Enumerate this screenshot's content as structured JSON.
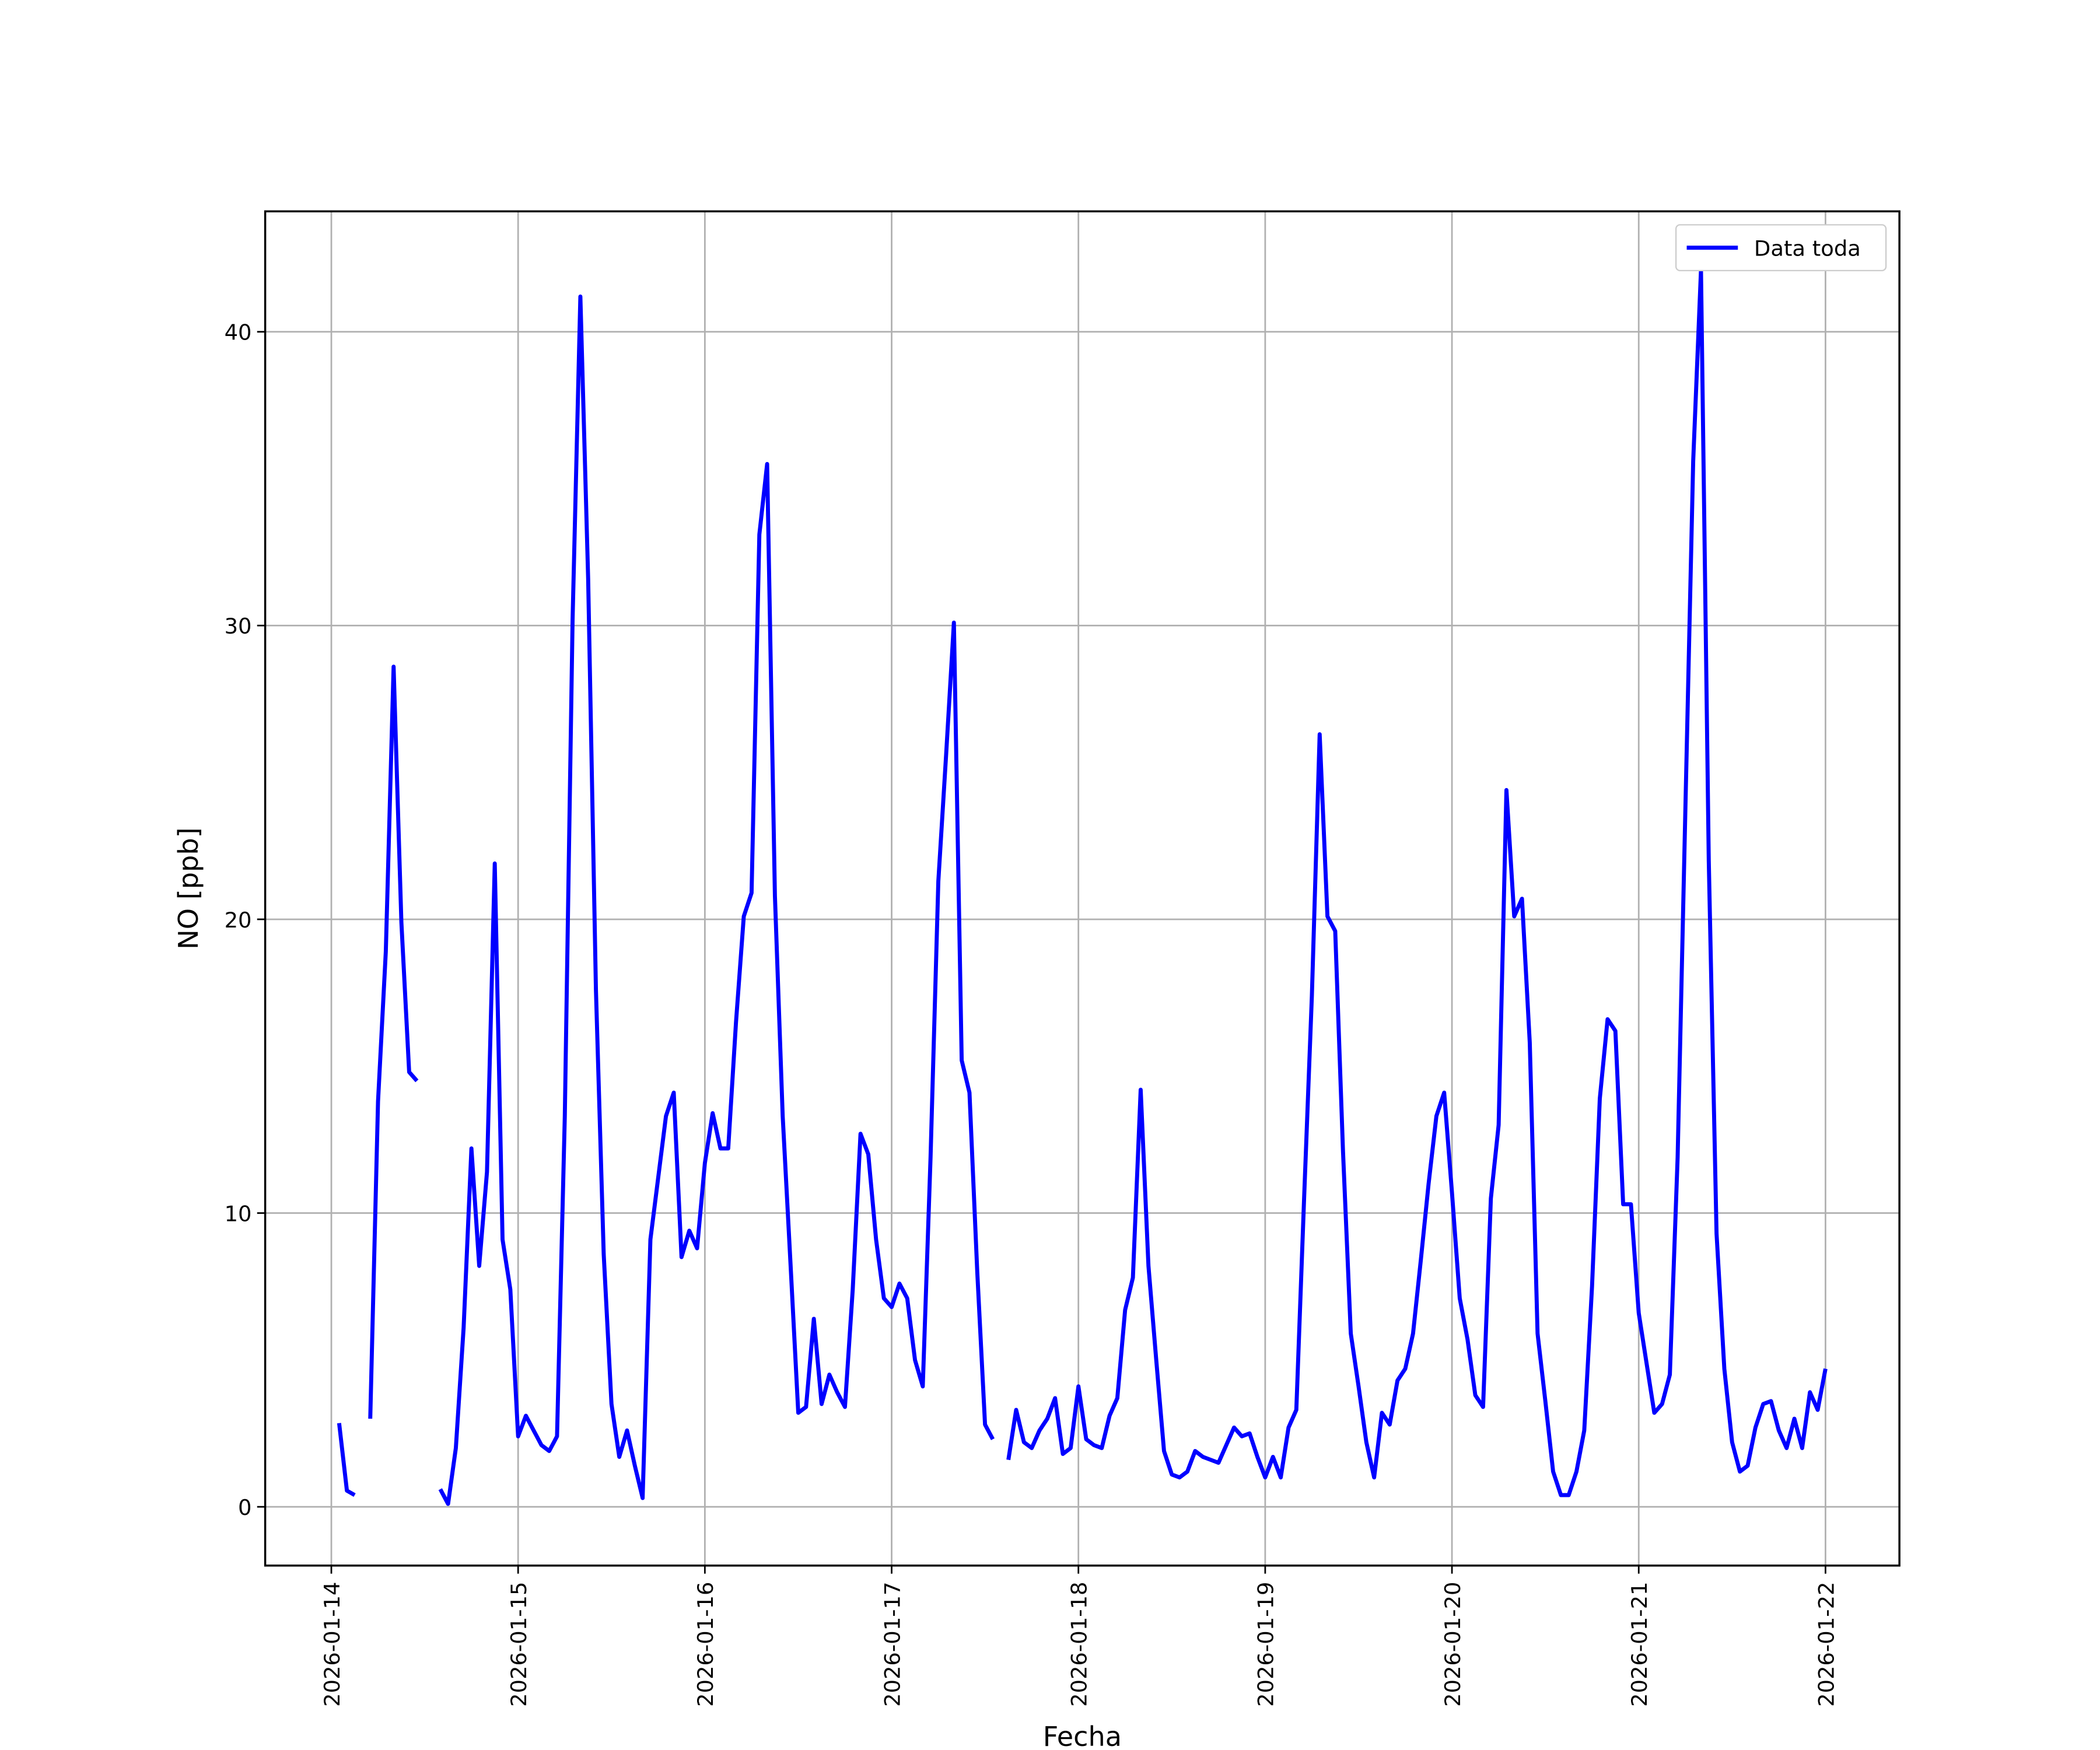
{
  "chart_data": {
    "type": "line",
    "xlabel": "Fecha",
    "ylabel": "NO [ppb]",
    "x": [
      "2026-01-14 01:00",
      "2026-01-14 02:00",
      "2026-01-14 03:00",
      "2026-01-14 04:00",
      "2026-01-14 05:00",
      "2026-01-14 06:00",
      "2026-01-14 07:00",
      "2026-01-14 08:00",
      "2026-01-14 09:00",
      "2026-01-14 10:00",
      "2026-01-14 11:00",
      "2026-01-14 12:00",
      "2026-01-14 13:00",
      "2026-01-14 14:00",
      "2026-01-14 15:00",
      "2026-01-14 16:00",
      "2026-01-14 17:00",
      "2026-01-14 18:00",
      "2026-01-14 19:00",
      "2026-01-14 20:00",
      "2026-01-14 21:00",
      "2026-01-14 22:00",
      "2026-01-14 23:00",
      "2026-01-15 00:00",
      "2026-01-15 01:00",
      "2026-01-15 02:00",
      "2026-01-15 03:00",
      "2026-01-15 04:00",
      "2026-01-15 05:00",
      "2026-01-15 06:00",
      "2026-01-15 07:00",
      "2026-01-15 08:00",
      "2026-01-15 09:00",
      "2026-01-15 10:00",
      "2026-01-15 11:00",
      "2026-01-15 12:00",
      "2026-01-15 13:00",
      "2026-01-15 14:00",
      "2026-01-15 15:00",
      "2026-01-15 16:00",
      "2026-01-15 17:00",
      "2026-01-15 18:00",
      "2026-01-15 19:00",
      "2026-01-15 20:00",
      "2026-01-15 21:00",
      "2026-01-15 22:00",
      "2026-01-15 23:00",
      "2026-01-16 00:00",
      "2026-01-16 01:00",
      "2026-01-16 02:00",
      "2026-01-16 03:00",
      "2026-01-16 04:00",
      "2026-01-16 05:00",
      "2026-01-16 06:00",
      "2026-01-16 07:00",
      "2026-01-16 08:00",
      "2026-01-16 09:00",
      "2026-01-16 10:00",
      "2026-01-16 11:00",
      "2026-01-16 12:00",
      "2026-01-16 13:00",
      "2026-01-16 14:00",
      "2026-01-16 15:00",
      "2026-01-16 16:00",
      "2026-01-16 17:00",
      "2026-01-16 18:00",
      "2026-01-16 19:00",
      "2026-01-16 20:00",
      "2026-01-16 21:00",
      "2026-01-16 22:00",
      "2026-01-16 23:00",
      "2026-01-17 00:00",
      "2026-01-17 01:00",
      "2026-01-17 02:00",
      "2026-01-17 03:00",
      "2026-01-17 04:00",
      "2026-01-17 05:00",
      "2026-01-17 06:00",
      "2026-01-17 07:00",
      "2026-01-17 08:00",
      "2026-01-17 09:00",
      "2026-01-17 10:00",
      "2026-01-17 11:00",
      "2026-01-17 12:00",
      "2026-01-17 13:00",
      "2026-01-17 14:00",
      "2026-01-17 15:00",
      "2026-01-17 16:00",
      "2026-01-17 17:00",
      "2026-01-17 18:00",
      "2026-01-17 19:00",
      "2026-01-17 20:00",
      "2026-01-17 21:00",
      "2026-01-17 22:00",
      "2026-01-17 23:00",
      "2026-01-18 00:00",
      "2026-01-18 01:00",
      "2026-01-18 02:00",
      "2026-01-18 03:00",
      "2026-01-18 04:00",
      "2026-01-18 05:00",
      "2026-01-18 06:00",
      "2026-01-18 07:00",
      "2026-01-18 08:00",
      "2026-01-18 09:00",
      "2026-01-18 10:00",
      "2026-01-18 11:00",
      "2026-01-18 12:00",
      "2026-01-18 13:00",
      "2026-01-18 14:00",
      "2026-01-18 15:00",
      "2026-01-18 16:00",
      "2026-01-18 17:00",
      "2026-01-18 18:00",
      "2026-01-18 19:00",
      "2026-01-18 20:00",
      "2026-01-18 21:00",
      "2026-01-18 22:00",
      "2026-01-18 23:00",
      "2026-01-19 00:00",
      "2026-01-19 01:00",
      "2026-01-19 02:00",
      "2026-01-19 03:00",
      "2026-01-19 04:00",
      "2026-01-19 05:00",
      "2026-01-19 06:00",
      "2026-01-19 07:00",
      "2026-01-19 08:00",
      "2026-01-19 09:00",
      "2026-01-19 10:00",
      "2026-01-19 11:00",
      "2026-01-19 12:00",
      "2026-01-19 13:00",
      "2026-01-19 14:00",
      "2026-01-19 15:00",
      "2026-01-19 16:00",
      "2026-01-19 17:00",
      "2026-01-19 18:00",
      "2026-01-19 19:00",
      "2026-01-19 20:00",
      "2026-01-19 21:00",
      "2026-01-19 22:00",
      "2026-01-19 23:00",
      "2026-01-20 00:00",
      "2026-01-20 01:00",
      "2026-01-20 02:00",
      "2026-01-20 03:00",
      "2026-01-20 04:00",
      "2026-01-20 05:00",
      "2026-01-20 06:00",
      "2026-01-20 07:00",
      "2026-01-20 08:00",
      "2026-01-20 09:00",
      "2026-01-20 10:00",
      "2026-01-20 11:00",
      "2026-01-20 12:00",
      "2026-01-20 13:00",
      "2026-01-20 14:00",
      "2026-01-20 15:00",
      "2026-01-20 16:00",
      "2026-01-20 17:00",
      "2026-01-20 18:00",
      "2026-01-20 19:00",
      "2026-01-20 20:00",
      "2026-01-20 21:00",
      "2026-01-20 22:00",
      "2026-01-20 23:00",
      "2026-01-21 00:00",
      "2026-01-21 01:00",
      "2026-01-21 02:00",
      "2026-01-21 03:00",
      "2026-01-21 04:00",
      "2026-01-21 05:00",
      "2026-01-21 06:00",
      "2026-01-21 07:00",
      "2026-01-21 08:00",
      "2026-01-21 09:00",
      "2026-01-21 10:00",
      "2026-01-21 11:00",
      "2026-01-21 12:00",
      "2026-01-21 13:00",
      "2026-01-21 14:00",
      "2026-01-21 15:00",
      "2026-01-21 16:00",
      "2026-01-21 17:00",
      "2026-01-21 18:00",
      "2026-01-21 19:00",
      "2026-01-21 20:00",
      "2026-01-21 21:00",
      "2026-01-21 22:00",
      "2026-01-21 23:00",
      "2026-01-22 00:00"
    ],
    "series": [
      {
        "name": "Data toda",
        "color": "#0000ff",
        "values": [
          2.85,
          0.55,
          0.4,
          null,
          3.0,
          13.8,
          18.9,
          28.6,
          19.9,
          14.8,
          14.5,
          null,
          null,
          0.6,
          0.1,
          2.0,
          6.1,
          12.2,
          8.2,
          11.4,
          21.9,
          9.1,
          7.4,
          2.4,
          3.1,
          2.6,
          2.1,
          1.9,
          2.4,
          13.3,
          30.2,
          41.2,
          31.6,
          17.6,
          8.6,
          3.5,
          1.7,
          2.6,
          1.4,
          0.3,
          9.1,
          11.2,
          13.3,
          14.1,
          8.5,
          9.4,
          8.8,
          11.7,
          13.4,
          12.2,
          12.2,
          16.5,
          20.1,
          20.9,
          33.1,
          35.5,
          20.8,
          13.3,
          8.3,
          3.2,
          3.4,
          6.4,
          3.5,
          4.5,
          3.9,
          3.4,
          7.4,
          12.7,
          12.0,
          9.1,
          7.1,
          6.8,
          7.6,
          7.1,
          5.0,
          4.1,
          11.9,
          21.3,
          25.6,
          30.1,
          15.2,
          14.1,
          8.0,
          2.8,
          2.3,
          null,
          1.6,
          3.3,
          2.2,
          2.0,
          2.6,
          3.0,
          3.7,
          1.8,
          2.0,
          4.1,
          2.3,
          2.1,
          2.0,
          3.1,
          3.7,
          6.7,
          7.8,
          14.2,
          8.2,
          5.0,
          1.9,
          1.1,
          1.0,
          1.2,
          1.9,
          1.7,
          1.6,
          1.5,
          2.1,
          2.7,
          2.4,
          2.5,
          1.7,
          1.0,
          1.7,
          1.0,
          2.7,
          3.3,
          10.5,
          17.4,
          26.3,
          20.1,
          19.6,
          12.1,
          5.9,
          4.1,
          2.2,
          1.0,
          3.2,
          2.8,
          4.3,
          4.7,
          5.9,
          8.4,
          11.0,
          13.3,
          14.1,
          10.7,
          7.1,
          5.7,
          3.8,
          3.4,
          10.5,
          13.0,
          24.4,
          20.1,
          20.7,
          15.8,
          5.9,
          3.6,
          1.2,
          0.4,
          0.4,
          1.2,
          2.6,
          7.5,
          13.9,
          16.6,
          16.2,
          10.3,
          10.3,
          6.6,
          4.9,
          3.2,
          3.5,
          4.5,
          11.9,
          23.8,
          35.6,
          42.1,
          22.0,
          9.3,
          4.7,
          2.2,
          1.2,
          1.4,
          2.7,
          3.5,
          3.6,
          2.6,
          2.0,
          3.0,
          2.0,
          3.9,
          3.3,
          4.7
        ]
      }
    ],
    "xlim": [
      "2026-01-13 15:30",
      "2026-01-22 09:30"
    ],
    "xticks": [
      "2026-01-14",
      "2026-01-15",
      "2026-01-16",
      "2026-01-17",
      "2026-01-18",
      "2026-01-19",
      "2026-01-20",
      "2026-01-21",
      "2026-01-22"
    ],
    "ylim": [
      -2.0,
      44.1
    ],
    "yticks": [
      0,
      10,
      20,
      30,
      40
    ],
    "grid": true,
    "legend": "upper right"
  }
}
